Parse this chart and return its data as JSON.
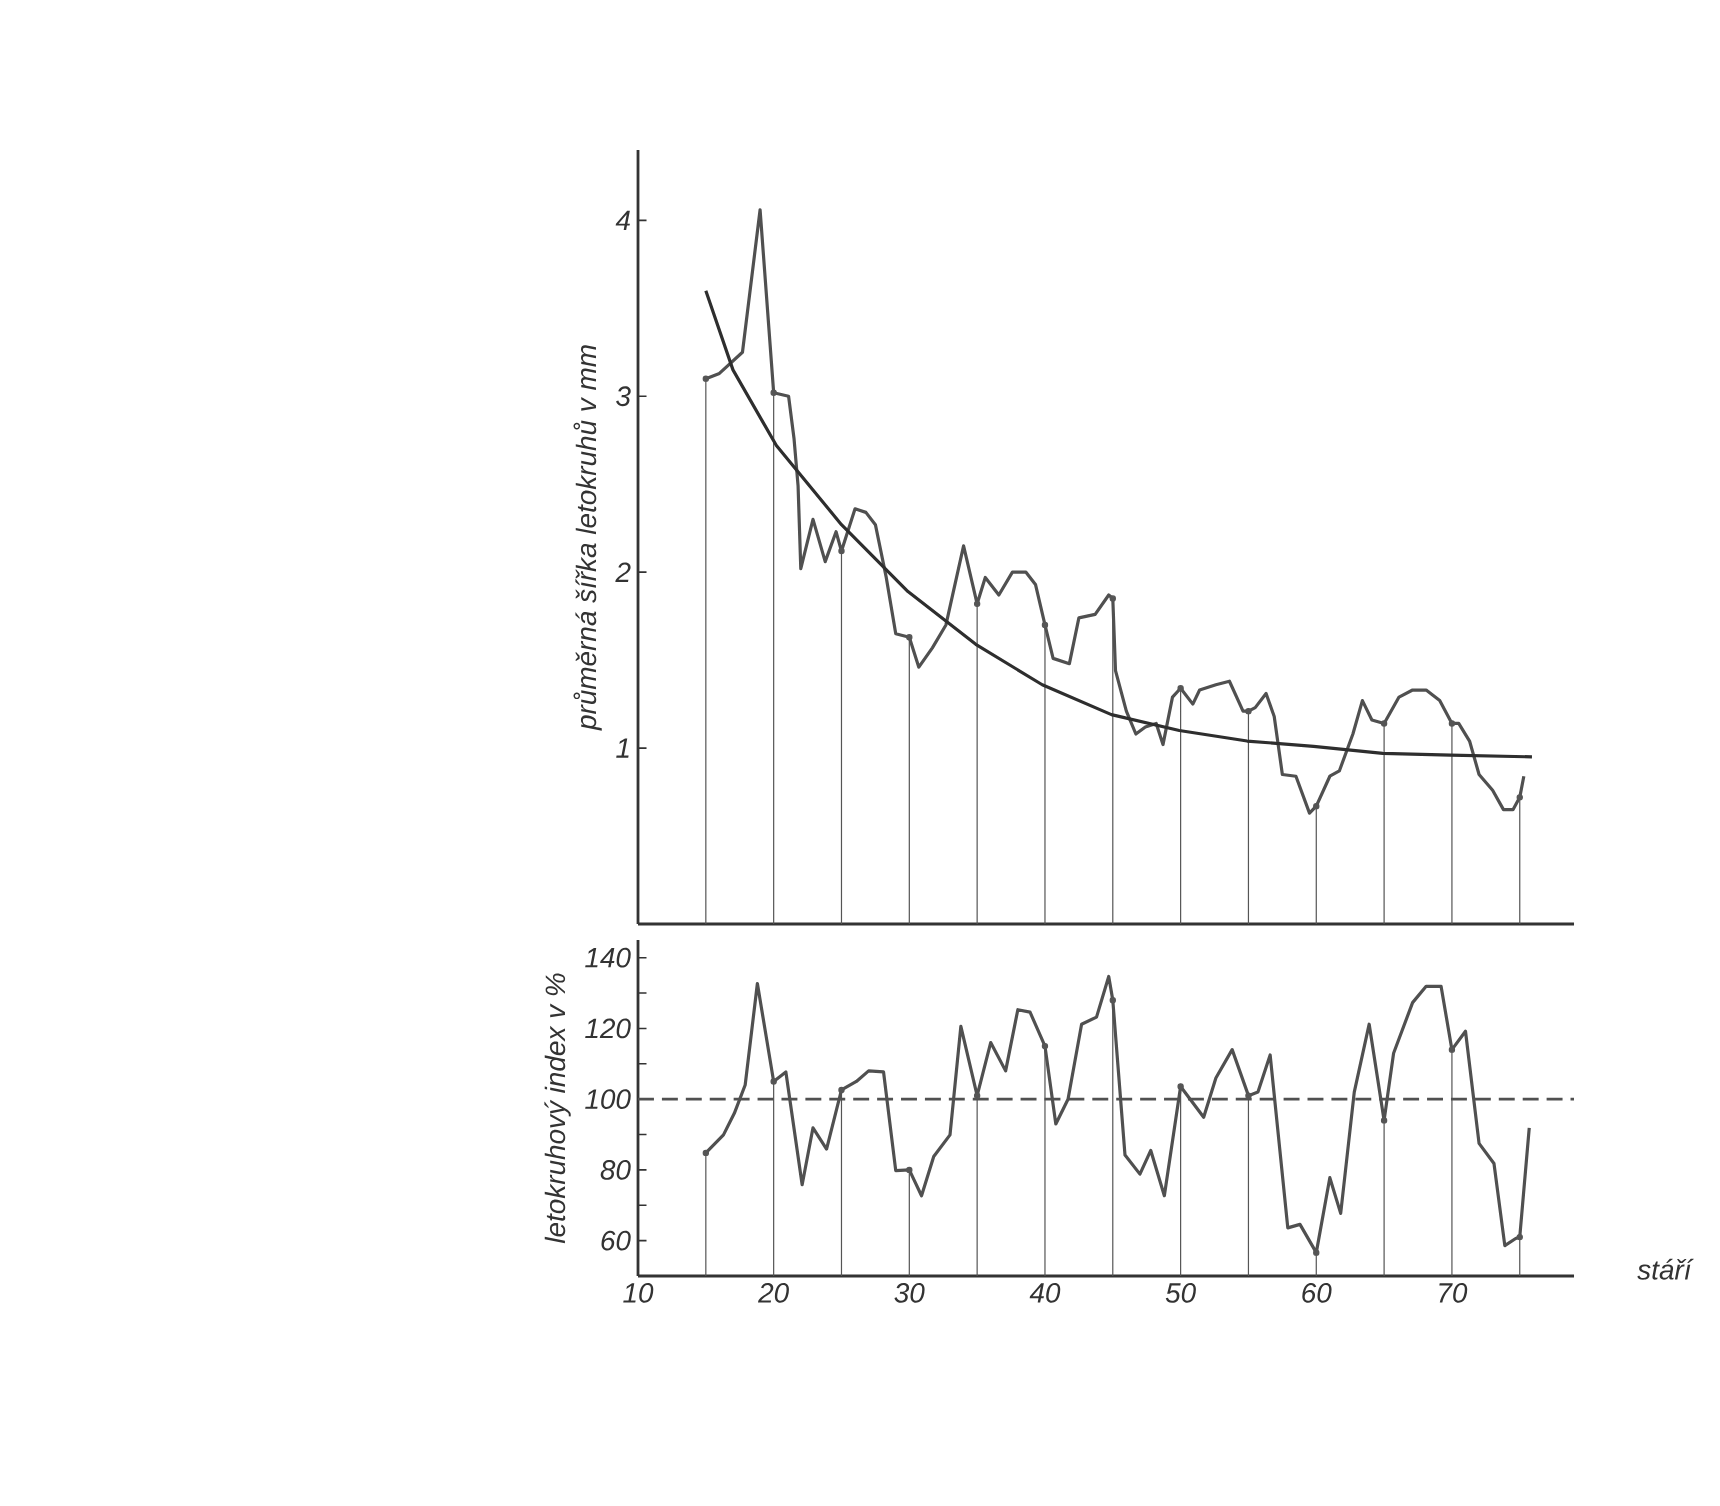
{
  "chart_data": [
    {
      "type": "line",
      "ylabel": "průměrná šířka letokruhů v mm",
      "xlim": [
        10,
        79
      ],
      "xticks": [
        10,
        20,
        30,
        40,
        50,
        60,
        70
      ],
      "ylim": [
        0,
        4.4
      ],
      "yticks": [
        1,
        2,
        3,
        4
      ],
      "tick_labels": "y",
      "marker": "none",
      "series": [
        {
          "type": "lollipop",
          "marker": "circle",
          "color": "#555555",
          "x": [
            15,
            20,
            25,
            30,
            35,
            40,
            45,
            50,
            55,
            60,
            65,
            70,
            75
          ],
          "values": [
            3.1,
            3.02,
            2.12,
            1.63,
            1.82,
            1.7,
            1.85,
            1.34,
            1.21,
            0.67,
            1.14,
            1.14,
            0.72
          ]
        },
        {
          "type": "line",
          "color": "#505050",
          "x": [
            15,
            16,
            17.7,
            19,
            20,
            21.1,
            21.5,
            21.8,
            22,
            22.9,
            23.8,
            24.6,
            25,
            26,
            26.8,
            27.5,
            28.3,
            29,
            30,
            30.7,
            31.7,
            32.7,
            34,
            35,
            35.6,
            36.6,
            37.6,
            38.6,
            39.3,
            40,
            40.6,
            41.8,
            42.5,
            43.7,
            44.7,
            45,
            45.2,
            46,
            46.7,
            47.4,
            48.2,
            48.7,
            49.4,
            50,
            50.9,
            51.4,
            52.6,
            53.6,
            54.6,
            55,
            55.5,
            56.3,
            56.9,
            57.5,
            58.5,
            59.5,
            60,
            61,
            61.7,
            62.7,
            63.4,
            64.1,
            65,
            66.1,
            67.1,
            68.1,
            69.1,
            70,
            70.5,
            71.3,
            72,
            73,
            73.8,
            74.5,
            75,
            75.3
          ],
          "values": [
            3.1,
            3.13,
            3.25,
            4.06,
            3.02,
            3.0,
            2.76,
            2.49,
            2.02,
            2.3,
            2.06,
            2.23,
            2.12,
            2.36,
            2.34,
            2.27,
            1.97,
            1.65,
            1.63,
            1.46,
            1.57,
            1.7,
            2.15,
            1.82,
            1.97,
            1.87,
            2.0,
            2.0,
            1.93,
            1.7,
            1.51,
            1.48,
            1.74,
            1.76,
            1.87,
            1.85,
            1.44,
            1.21,
            1.08,
            1.12,
            1.14,
            1.02,
            1.29,
            1.34,
            1.25,
            1.33,
            1.36,
            1.38,
            1.21,
            1.21,
            1.23,
            1.31,
            1.18,
            0.85,
            0.84,
            0.63,
            0.67,
            0.84,
            0.87,
            1.08,
            1.27,
            1.16,
            1.14,
            1.29,
            1.33,
            1.33,
            1.27,
            1.14,
            1.14,
            1.04,
            0.85,
            0.76,
            0.65,
            0.65,
            0.72,
            0.84
          ]
        },
        {
          "type": "line",
          "color": "#2e2e2e",
          "x": [
            15,
            17,
            20.2,
            25,
            29.9,
            34.9,
            39.8,
            44.9,
            49.9,
            54.9,
            59.8,
            64.9,
            69.9,
            75.9
          ],
          "values": [
            3.6,
            3.15,
            2.72,
            2.27,
            1.89,
            1.59,
            1.36,
            1.19,
            1.1,
            1.04,
            1.01,
            0.97,
            0.96,
            0.95
          ]
        }
      ]
    },
    {
      "type": "line",
      "ylabel": "letokruhový index v %",
      "xlabel": "stáří",
      "xlim": [
        10,
        79
      ],
      "xticks": [
        10,
        20,
        30,
        40,
        50,
        60,
        70
      ],
      "ylim": [
        50,
        145
      ],
      "yticks": [
        60,
        {
          "value": 70,
          "label": null
        },
        80,
        {
          "value": 90,
          "label": null
        },
        100,
        {
          "value": 110,
          "label": null
        },
        120,
        {
          "value": 130,
          "label": null
        },
        140
      ],
      "marker": "none",
      "ref_lines": [
        {
          "axis": "y",
          "value": 100,
          "color": "#505050",
          "line_style": "dashed"
        }
      ],
      "series": [
        {
          "type": "lollipop",
          "marker": "circle",
          "color": "#555555",
          "x": [
            15,
            20,
            25,
            30,
            35,
            40,
            45,
            50,
            55,
            60,
            65,
            70,
            75
          ],
          "values": [
            84.8,
            105,
            102.6,
            80,
            101,
            115,
            128,
            103.6,
            101,
            56.6,
            94,
            114,
            61
          ]
        },
        {
          "type": "line",
          "color": "#505050",
          "x": [
            15,
            16.3,
            17.1,
            17.9,
            18.8,
            20,
            20.9,
            22.1,
            22.9,
            23.9,
            25,
            26.1,
            27,
            28.1,
            29,
            30,
            30.9,
            31.8,
            33,
            33.8,
            35,
            36,
            37.1,
            38,
            38.9,
            40,
            40.8,
            41.7,
            42.7,
            43.8,
            44.7,
            45,
            45.9,
            47,
            47.8,
            48.8,
            50,
            51.7,
            52.6,
            53.8,
            55,
            55.7,
            56.6,
            57.9,
            58.8,
            60,
            61,
            61.8,
            62.8,
            63.9,
            65,
            65.7,
            67.1,
            68.1,
            69.2,
            70,
            71,
            72,
            73.1,
            73.9,
            74.7,
            75,
            75.7
          ],
          "values": [
            84.8,
            89.9,
            96,
            104,
            132.7,
            105,
            107.7,
            75.8,
            91.9,
            85.9,
            102.6,
            105,
            108,
            107.7,
            79.8,
            80,
            72.7,
            83.8,
            89.9,
            120.6,
            101,
            116,
            108,
            125.3,
            124.6,
            115,
            93,
            100,
            121.2,
            123.2,
            134.7,
            128,
            84.2,
            78.8,
            85.5,
            72.7,
            103.6,
            94.9,
            106,
            114,
            101,
            102,
            112.5,
            63.6,
            64.6,
            56.6,
            77.8,
            67.7,
            102,
            121.2,
            94,
            113,
            127.3,
            131.9,
            131.9,
            114,
            119.2,
            87.5,
            81.8,
            58.6,
            60.6,
            61,
            91.9
          ]
        }
      ]
    }
  ]
}
